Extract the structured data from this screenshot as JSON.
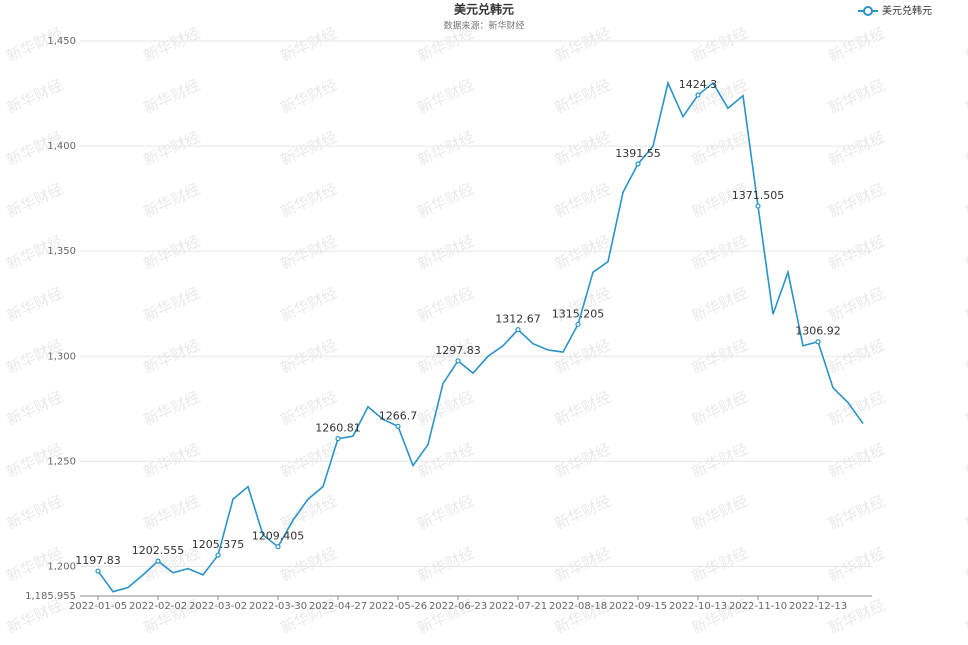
{
  "chart_data": {
    "type": "line",
    "title": "美元兑韩元",
    "subtitle": "数据来源：新华财经",
    "watermark": "新华财经",
    "legend": "top-right",
    "grid": true,
    "categories": [
      "2022-01-05",
      null,
      null,
      null,
      "2022-02-02",
      null,
      null,
      null,
      "2022-03-02",
      null,
      null,
      null,
      "2022-03-30",
      null,
      null,
      null,
      "2022-04-27",
      null,
      null,
      null,
      "2022-05-26",
      null,
      null,
      null,
      "2022-06-23",
      null,
      null,
      null,
      "2022-07-21",
      null,
      null,
      null,
      "2022-08-18",
      null,
      null,
      null,
      "2022-09-15",
      null,
      null,
      null,
      "2022-10-13",
      null,
      null,
      null,
      "2022-11-10",
      null,
      null,
      null,
      "2022-12-13",
      null,
      null,
      null
    ],
    "series": [
      {
        "name": "美元兑韩元",
        "color": "#2a93c8",
        "values": [
          1197.83,
          1188,
          1190,
          1196,
          1202.555,
          1197,
          1199,
          1196,
          1205.375,
          1232,
          1238,
          1215,
          1209.405,
          1222,
          1232,
          1238,
          1260.81,
          1262,
          1276,
          1270,
          1266.7,
          1248,
          1258,
          1287,
          1297.83,
          1292,
          1300,
          1305,
          1312.67,
          1306,
          1303,
          1302,
          1315.205,
          1340,
          1345,
          1378,
          1391.55,
          1400,
          1430,
          1414,
          1424.3,
          1430,
          1418,
          1424,
          1371.505,
          1320,
          1340,
          1305,
          1306.92,
          1285,
          1278,
          1268
        ],
        "value_labels": [
          "1197.83",
          null,
          null,
          null,
          "1202.555",
          null,
          null,
          null,
          "1205.375",
          null,
          null,
          null,
          "1209.405",
          null,
          null,
          null,
          "1260.81",
          null,
          null,
          null,
          "1266.7",
          null,
          null,
          null,
          "1297.83",
          null,
          null,
          null,
          "1312.67",
          null,
          null,
          null,
          "1315.205",
          null,
          null,
          null,
          "1391.55",
          null,
          null,
          null,
          "1424.3",
          null,
          null,
          null,
          "1371.505",
          null,
          null,
          null,
          "1306.92",
          null,
          null,
          null
        ]
      }
    ],
    "ylim": [
      1185.955,
      1450
    ],
    "yticks": [
      {
        "value": 1185.955,
        "label": "1,185.955"
      },
      {
        "value": 1200,
        "label": "1,200"
      },
      {
        "value": 1250,
        "label": "1,250"
      },
      {
        "value": 1300,
        "label": "1,300"
      },
      {
        "value": 1350,
        "label": "1,350"
      },
      {
        "value": 1400,
        "label": "1,400"
      },
      {
        "value": 1450,
        "label": "1,450"
      }
    ]
  }
}
